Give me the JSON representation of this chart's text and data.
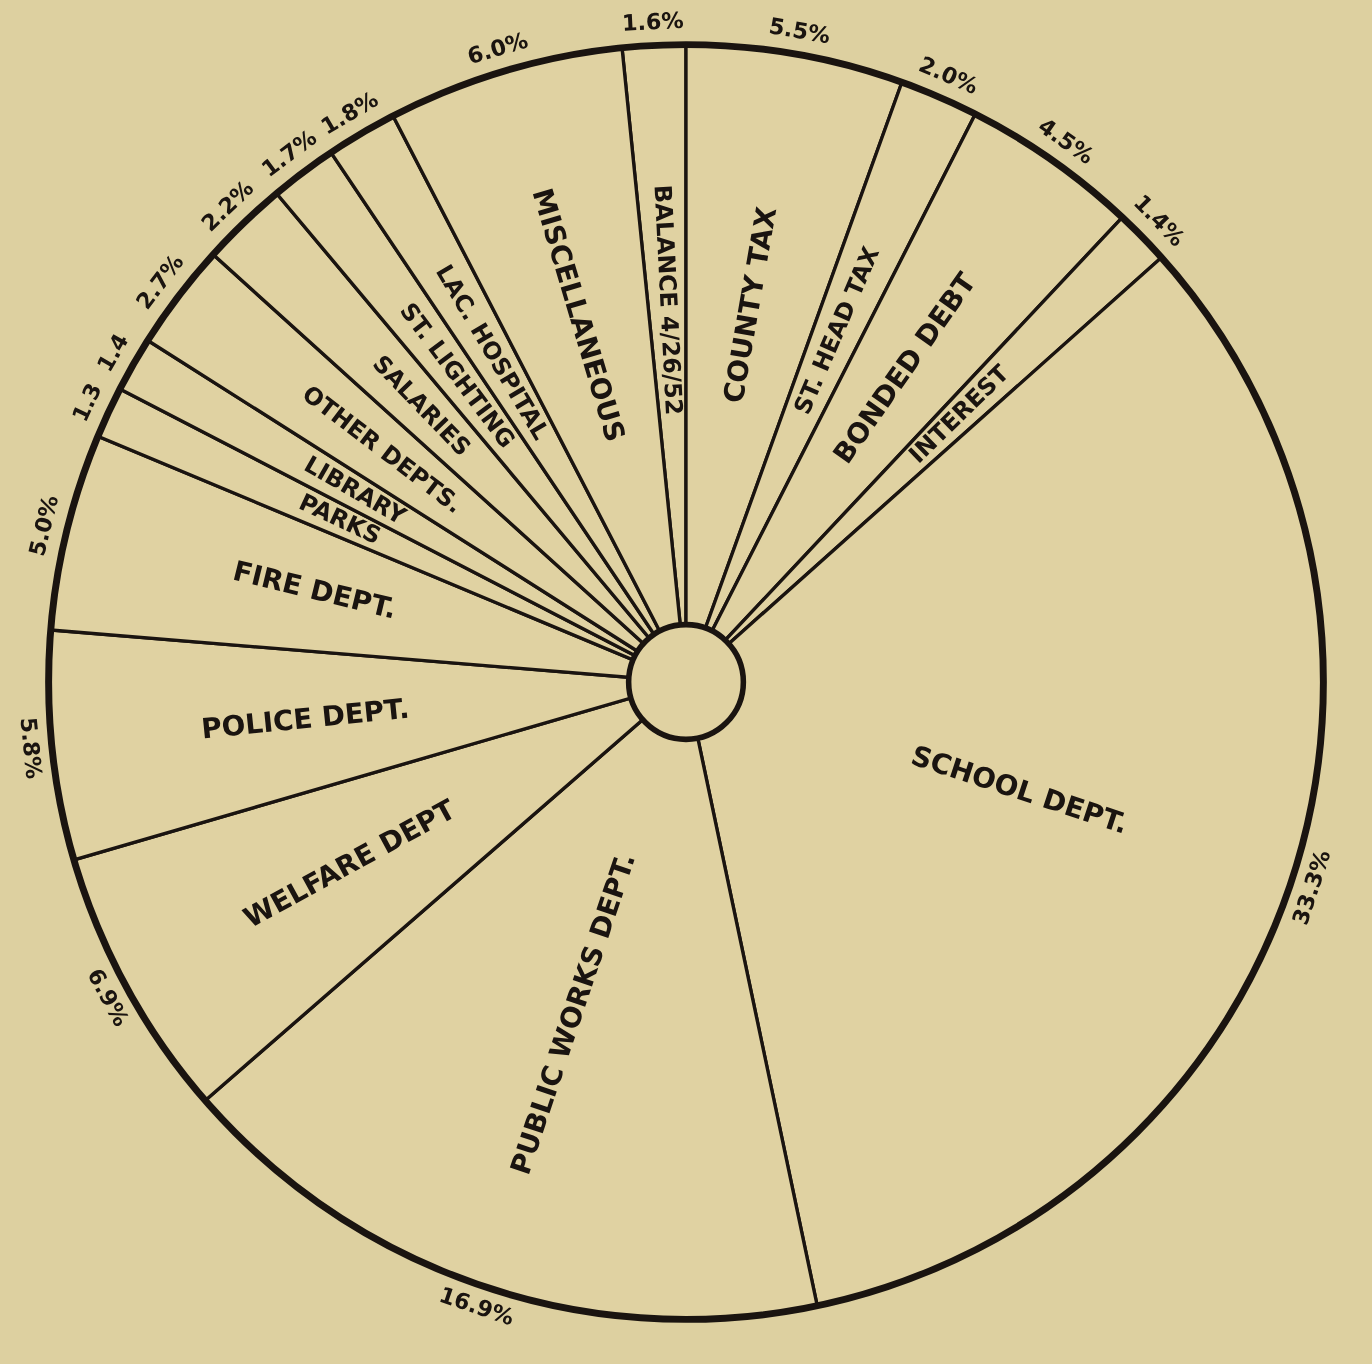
{
  "chart_data": {
    "type": "pie",
    "categories": [
      "BALANCE 4/26/52",
      "COUNTY TAX",
      "ST. HEAD TAX",
      "BONDED DEBT",
      "INTEREST",
      "SCHOOL DEPT.",
      "PUBLIC WORKS DEPT.",
      "WELFARE DEPT",
      "POLICE DEPT.",
      "FIRE DEPT.",
      "PARKS",
      "LIBRARY",
      "OTHER DEPTS.",
      "SALARIES",
      "ST. LIGHTING",
      "LAC. HOSPITAL",
      "MISCELLANEOUS"
    ],
    "values": [
      1.6,
      5.5,
      2.0,
      4.5,
      1.4,
      33.3,
      16.9,
      6.9,
      5.8,
      5.0,
      1.3,
      1.4,
      2.7,
      2.2,
      1.7,
      1.8,
      6.0
    ],
    "value_labels": [
      "1.6%",
      "5.5%",
      "2.0%",
      "4.5%",
      "1.4%",
      "33.3%",
      "16.9%",
      "6.9%",
      "5.8%",
      "5.0%",
      "1.3",
      "1.4",
      "2.7%",
      "2.2%",
      "1.7%",
      "1.8%",
      "6.0%"
    ],
    "color": "#e0d2a2"
  }
}
